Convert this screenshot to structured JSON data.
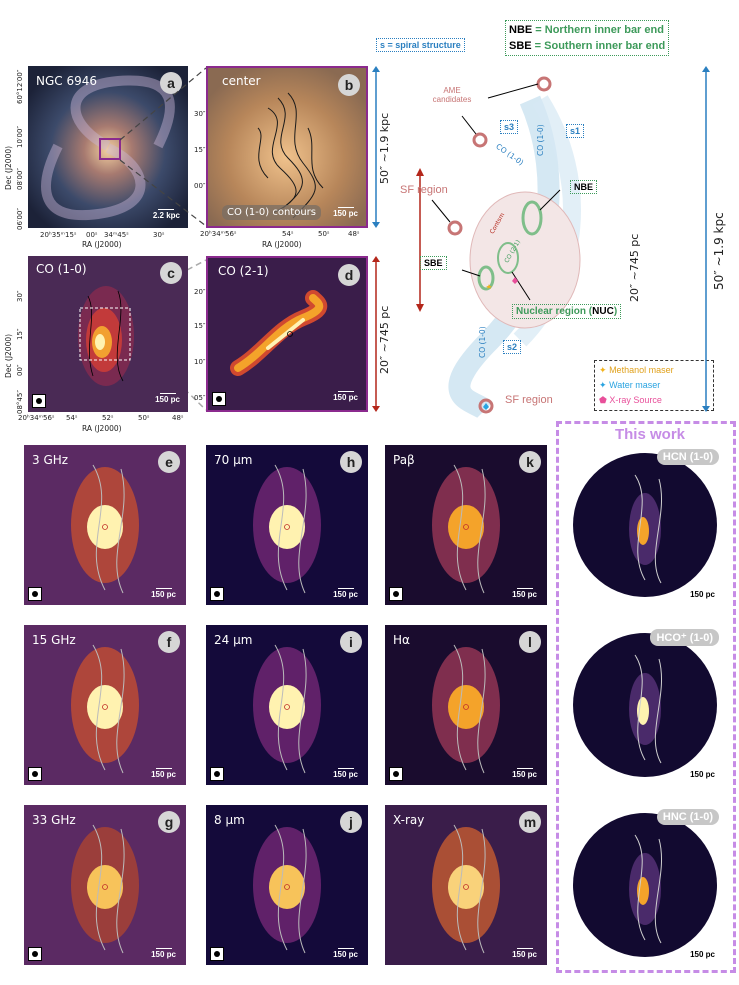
{
  "figure": {
    "panel_a": {
      "title": "NGC 6946",
      "letter": "a",
      "scale": "2.2 kpc",
      "xticks": [
        "20ʰ35ᵐ15ˢ",
        "00ˢ",
        "34ᵐ45ˢ",
        "30ˢ"
      ],
      "yticks": [
        "60°12′00″",
        "10′00″",
        "08′00″",
        "06′00″"
      ]
    },
    "panel_b": {
      "title": "center",
      "letter": "b",
      "scale": "150 pc",
      "note": "CO (1-0) contours",
      "xticks": [
        "20ʰ34ᵐ56ˢ",
        "54ˢ",
        "52ˢ",
        "50ˢ",
        "48ˢ"
      ],
      "yticks": [
        "30″",
        "15″",
        "00″",
        "08°45″"
      ]
    },
    "panel_c": {
      "title": "CO (1-0)",
      "letter": "c",
      "scale": "150 pc",
      "xticks": [
        "20ʰ34ᵐ56ˢ",
        "54ˢ",
        "52ˢ",
        "50ˢ",
        "48ˢ"
      ],
      "yticks": [
        "30″",
        "15″",
        "00″",
        "08°45″"
      ]
    },
    "panel_d": {
      "title": "CO (2-1)",
      "letter": "d",
      "scale": "150 pc",
      "yticks": [
        "20″",
        "15″",
        "10″",
        "05″"
      ]
    },
    "axes": {
      "dec": "Dec (J2000)",
      "ra": "RA (J2000)"
    },
    "size_labels": {
      "big": "50″ ~1.9 kpc",
      "small": "20″ ~745 pc"
    },
    "schematic": {
      "legend_s": "s = spiral structure",
      "legend_nbe_key": "NBE",
      "legend_nbe_text": " = Northern inner bar end",
      "legend_sbe_key": "SBE",
      "legend_sbe_text": " = Southern inner bar end",
      "ame": "AME candidates",
      "s1": "s1",
      "s2": "s2",
      "s3": "s3",
      "sf_top": "SF region",
      "sf_bottom": "SF region",
      "nbe": "NBE",
      "sbe": "SBE",
      "nuc_prefix": "Nuclear region (",
      "nuc_key": "NUC",
      "nuc_suffix": ")",
      "co10a": "CO (1-0)",
      "co10b": "CO (1-0)",
      "co10c": "CO (1-0)",
      "co21": "CO (2-1)",
      "contsm": "Contsm",
      "maser_meth": "Methanol maser",
      "maser_water": "Water maser",
      "xray": "X-ray Source"
    },
    "this_work": "This work",
    "grid": [
      {
        "id": "e",
        "title": "3 GHz",
        "scale": "150 pc",
        "beam": true
      },
      {
        "id": "h",
        "title": "70 μm",
        "scale": "150 pc",
        "beam": true
      },
      {
        "id": "k",
        "title": "Paβ",
        "scale": "150 pc",
        "beam": true
      },
      {
        "id": "hcn",
        "title": "HCN (1-0)",
        "scale": "150 pc",
        "beam": false
      },
      {
        "id": "f",
        "title": "15 GHz",
        "scale": "150 pc",
        "beam": true
      },
      {
        "id": "i",
        "title": "24 μm",
        "scale": "150 pc",
        "beam": true
      },
      {
        "id": "l",
        "title": "Hα",
        "scale": "150 pc",
        "beam": true
      },
      {
        "id": "hco",
        "title": "HCO⁺ (1-0)",
        "scale": "150 pc",
        "beam": false
      },
      {
        "id": "g",
        "title": "33 GHz",
        "scale": "150 pc",
        "beam": true
      },
      {
        "id": "j",
        "title": "8 μm",
        "scale": "150 pc",
        "beam": true
      },
      {
        "id": "m",
        "title": "X-ray",
        "scale": "150 pc",
        "beam": false
      },
      {
        "id": "hnc",
        "title": "HNC (1-0)",
        "scale": "150 pc",
        "beam": false
      }
    ],
    "colors": {
      "purple": "#8b2a8e",
      "red": "#b4261a",
      "blue": "#2a7fc0",
      "green": "#3d9a5a",
      "magenta": "#c68ce6"
    }
  }
}
